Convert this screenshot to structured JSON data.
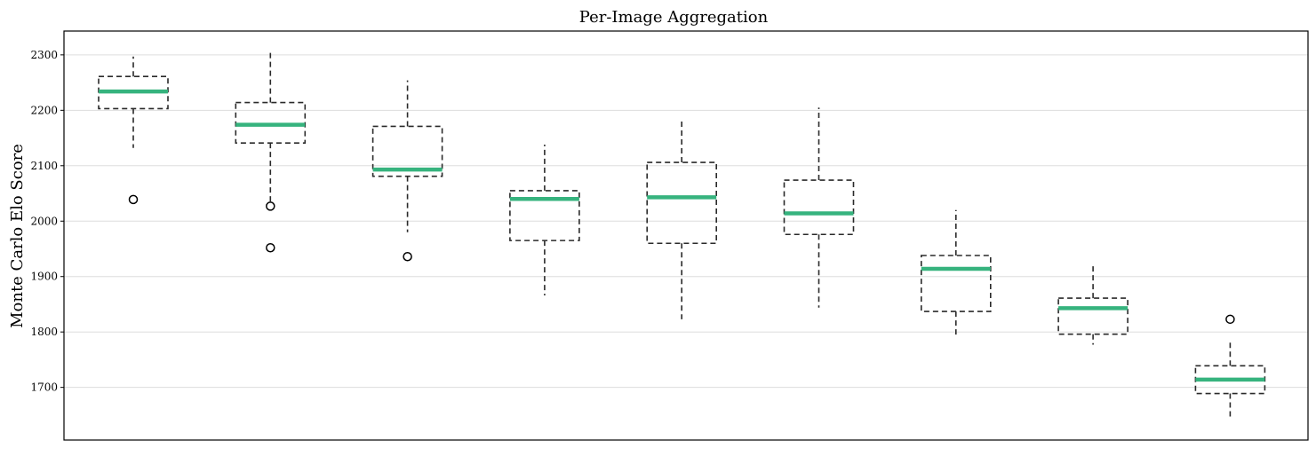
{
  "chart_data": {
    "type": "box",
    "title": "Per-Image Aggregation",
    "xlabel": "",
    "ylabel": "Monte Carlo Elo Score",
    "ylim": [
      1605,
      2343
    ],
    "yticks": [
      1700,
      1800,
      1900,
      2000,
      2100,
      2200,
      2300
    ],
    "grid": "horizontal",
    "show_xticks": false,
    "colors": {
      "median": "#36b37e",
      "box": "#2a2a2a",
      "grid": "#dddddd",
      "frame": "#000000"
    },
    "boxes": [
      {
        "whisker_low": 2132,
        "q1": 2203,
        "median": 2234,
        "q3": 2261,
        "whisker_high": 2297,
        "outliers": [
          2039
        ]
      },
      {
        "whisker_low": 2033,
        "q1": 2141,
        "median": 2174,
        "q3": 2214,
        "whisker_high": 2307,
        "outliers": [
          2027,
          1952
        ]
      },
      {
        "whisker_low": 1980,
        "q1": 2081,
        "median": 2093,
        "q3": 2171,
        "whisker_high": 2254,
        "outliers": [
          1936
        ]
      },
      {
        "whisker_low": 1866,
        "q1": 1965,
        "median": 2040,
        "q3": 2055,
        "whisker_high": 2138,
        "outliers": []
      },
      {
        "whisker_low": 1823,
        "q1": 1960,
        "median": 2043,
        "q3": 2106,
        "whisker_high": 2181,
        "outliers": []
      },
      {
        "whisker_low": 1844,
        "q1": 1976,
        "median": 2014,
        "q3": 2074,
        "whisker_high": 2205,
        "outliers": []
      },
      {
        "whisker_low": 1790,
        "q1": 1837,
        "median": 1914,
        "q3": 1938,
        "whisker_high": 2020,
        "outliers": []
      },
      {
        "whisker_low": 1777,
        "q1": 1796,
        "median": 1843,
        "q3": 1861,
        "whisker_high": 1920,
        "outliers": []
      },
      {
        "whisker_low": 1641,
        "q1": 1689,
        "median": 1714,
        "q3": 1739,
        "whisker_high": 1783,
        "outliers": [
          1823
        ]
      }
    ]
  }
}
